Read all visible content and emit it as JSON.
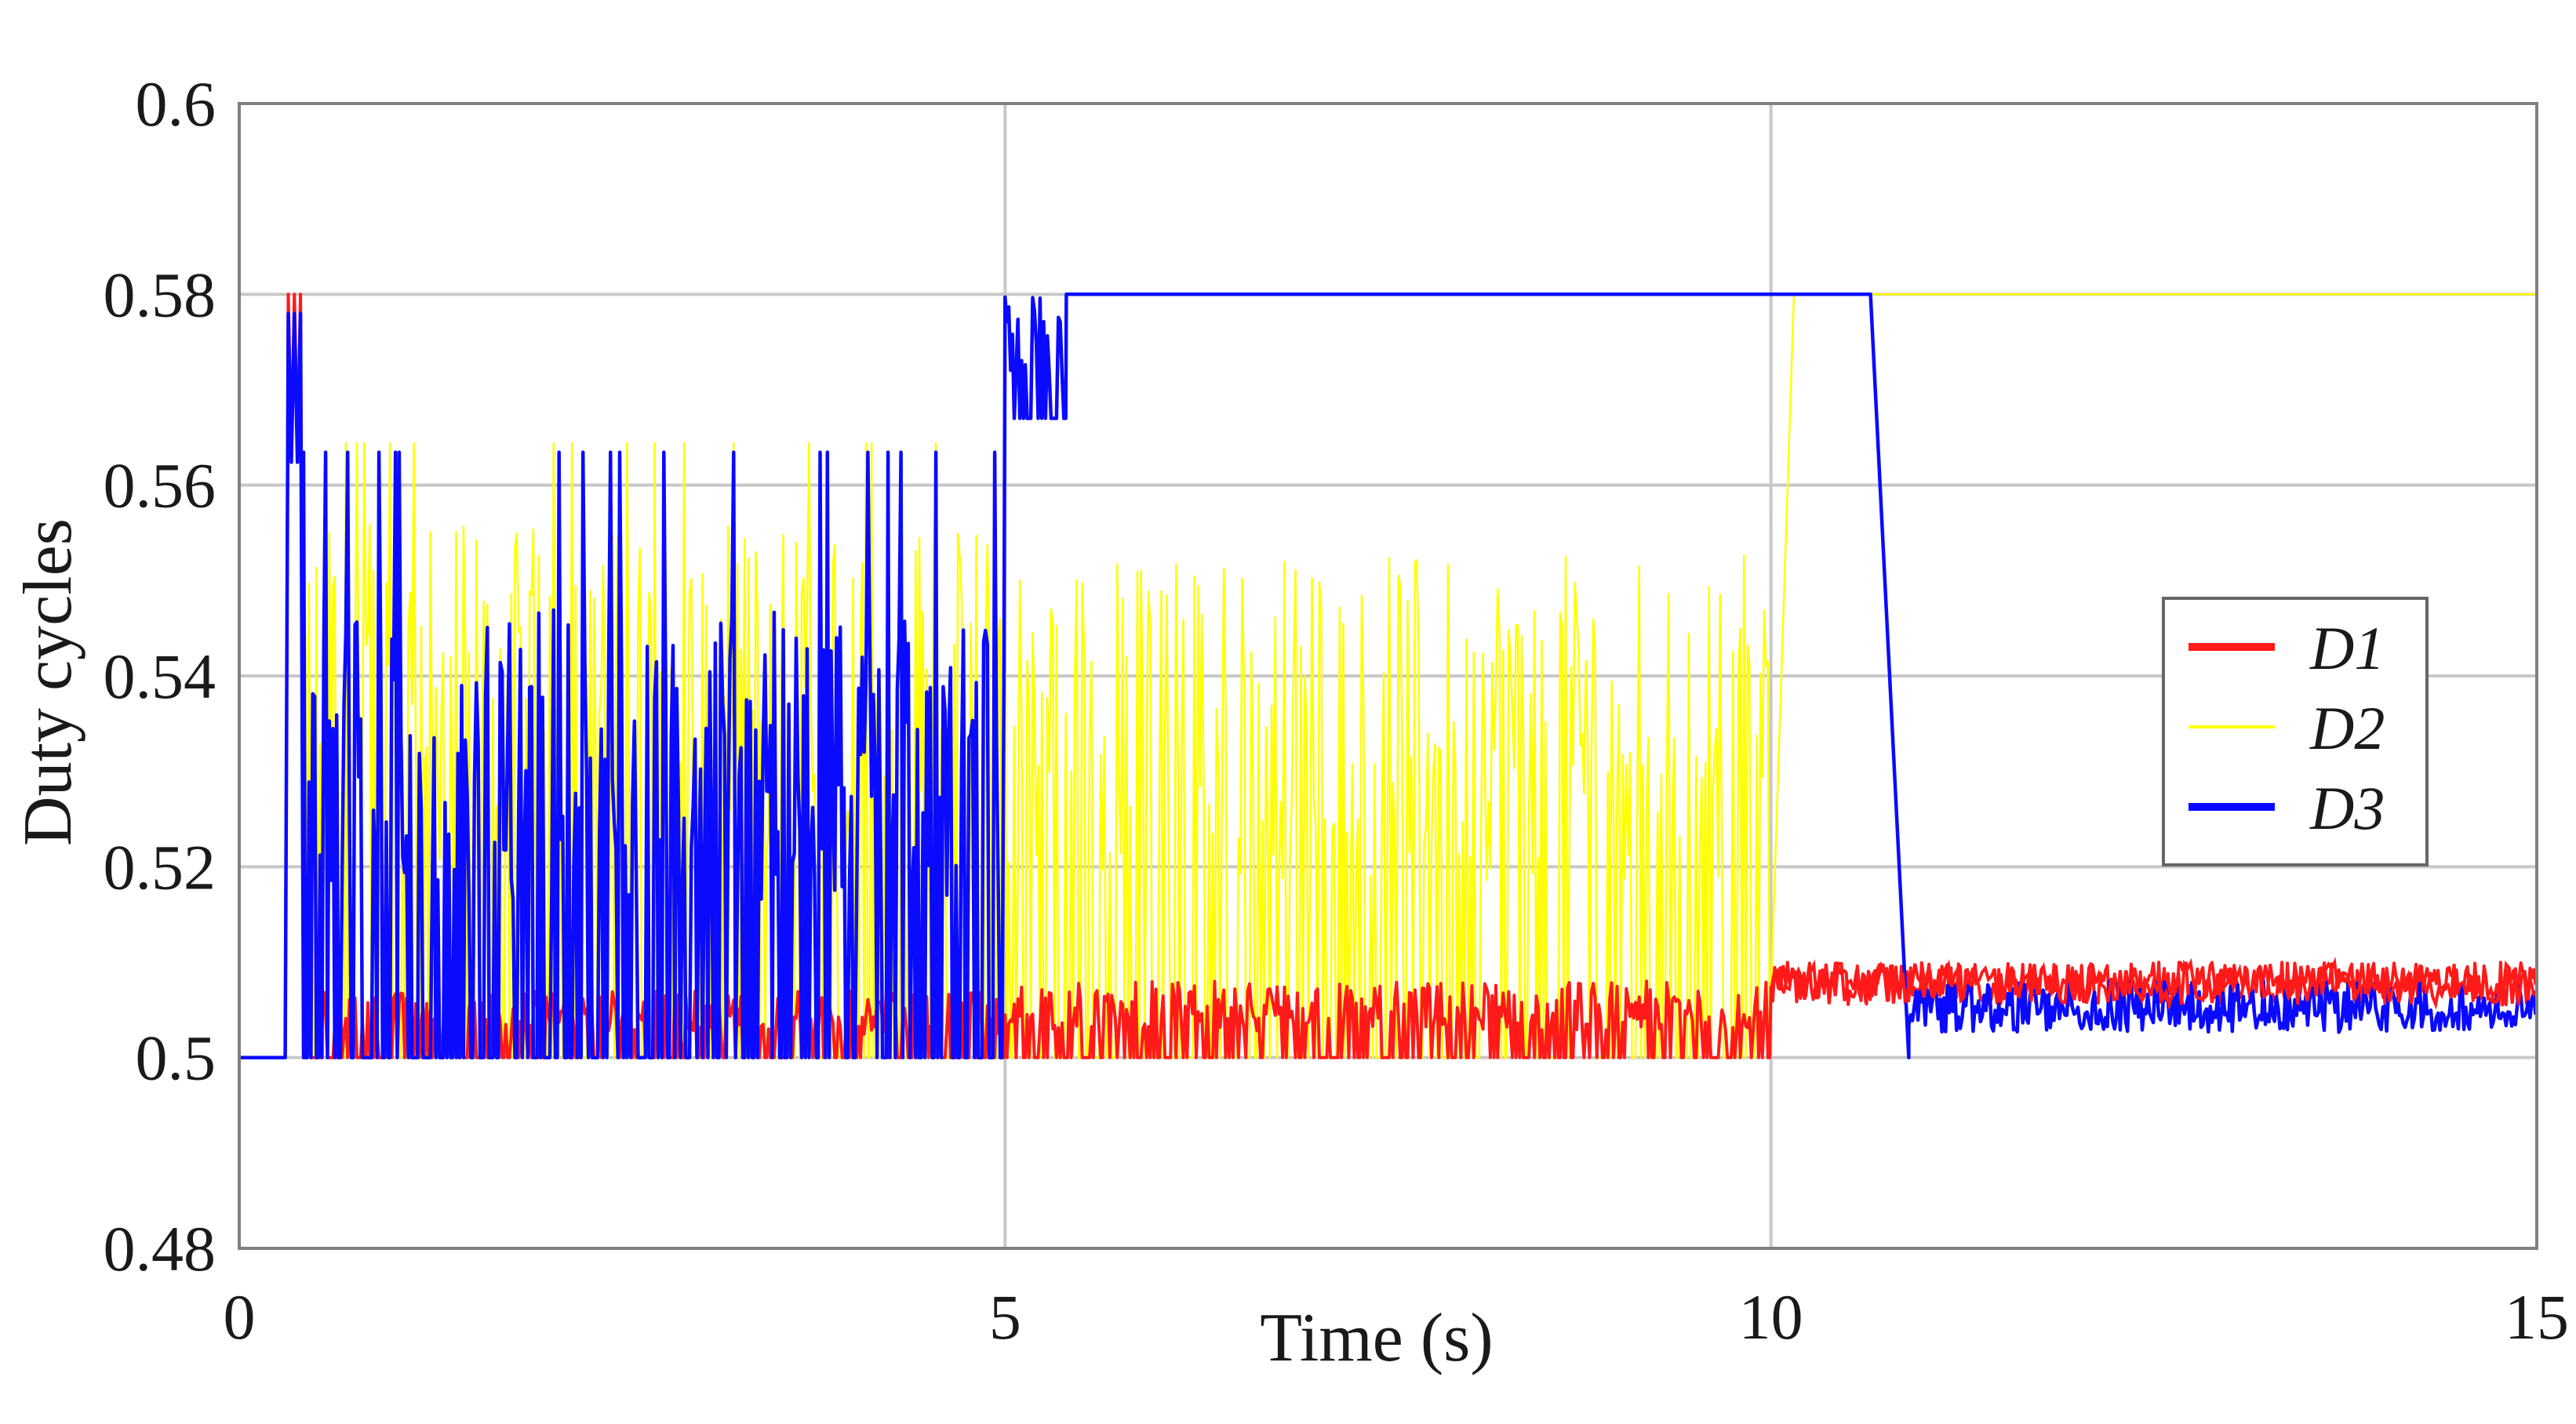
{
  "chart_data": {
    "type": "line",
    "xlabel": "Time (s)",
    "ylabel": "Duty cycles",
    "xlim": [
      0,
      15
    ],
    "ylim": [
      0.48,
      0.6
    ],
    "x_ticks": [
      {
        "value": 0,
        "label": "0"
      },
      {
        "value": 5,
        "label": "5"
      },
      {
        "value": 10,
        "label": "10"
      },
      {
        "value": 15,
        "label": "15"
      }
    ],
    "y_ticks": [
      {
        "value": 0.48,
        "label": "0.48"
      },
      {
        "value": 0.5,
        "label": "0.5"
      },
      {
        "value": 0.52,
        "label": "0.52"
      },
      {
        "value": 0.54,
        "label": "0.54"
      },
      {
        "value": 0.56,
        "label": "0.56"
      },
      {
        "value": 0.58,
        "label": "0.58"
      },
      {
        "value": 0.6,
        "label": "0.6"
      }
    ],
    "grid": true,
    "legend_position": "right",
    "series": [
      {
        "name": "D1",
        "color": "#ff1a1a",
        "segments": [
          {
            "start": 0.0,
            "end": 0.3,
            "base": 0.5,
            "top": 0.5,
            "kind": "flat"
          },
          {
            "start": 0.3,
            "end": 0.42,
            "base": 0.5,
            "top": 0.58,
            "kind": "spike"
          },
          {
            "start": 0.42,
            "end": 5.0,
            "base": 0.5,
            "top": 0.507,
            "kind": "noise"
          },
          {
            "start": 5.0,
            "end": 10.0,
            "base": 0.5,
            "top": 0.508,
            "kind": "noise"
          },
          {
            "start": 10.0,
            "end": 15.0,
            "base": 0.5,
            "top": 0.51,
            "kind": "noise"
          }
        ]
      },
      {
        "name": "D2",
        "color": "#ffff00",
        "segments": [
          {
            "start": 0.42,
            "end": 5.0,
            "base": 0.5,
            "top": 0.556,
            "kind": "noise"
          },
          {
            "start": 5.0,
            "end": 10.0,
            "base": 0.5,
            "top": 0.553,
            "kind": "noise"
          },
          {
            "start": 10.0,
            "end": 10.15,
            "base": 0.507,
            "top": 0.58,
            "kind": "ramp"
          },
          {
            "start": 10.15,
            "end": 15.0,
            "base": 0.58,
            "top": 0.58,
            "kind": "flat"
          }
        ]
      },
      {
        "name": "D3",
        "color": "#0a0aff",
        "segments": [
          {
            "start": 0.0,
            "end": 0.3,
            "base": 0.5,
            "top": 0.5,
            "kind": "flat"
          },
          {
            "start": 0.3,
            "end": 0.42,
            "base": 0.5,
            "top": 0.578,
            "kind": "spike"
          },
          {
            "start": 0.42,
            "end": 5.0,
            "base": 0.5,
            "top": 0.547,
            "kind": "noise"
          },
          {
            "start": 5.0,
            "end": 5.4,
            "base": 0.567,
            "top": 0.58,
            "kind": "noise"
          },
          {
            "start": 5.4,
            "end": 10.65,
            "base": 0.58,
            "top": 0.58,
            "kind": "flat"
          },
          {
            "start": 10.65,
            "end": 10.9,
            "base": 0.58,
            "top": 0.5,
            "kind": "ramp"
          },
          {
            "start": 10.9,
            "end": 15.0,
            "base": 0.5,
            "top": 0.508,
            "kind": "noise"
          }
        ]
      }
    ]
  }
}
